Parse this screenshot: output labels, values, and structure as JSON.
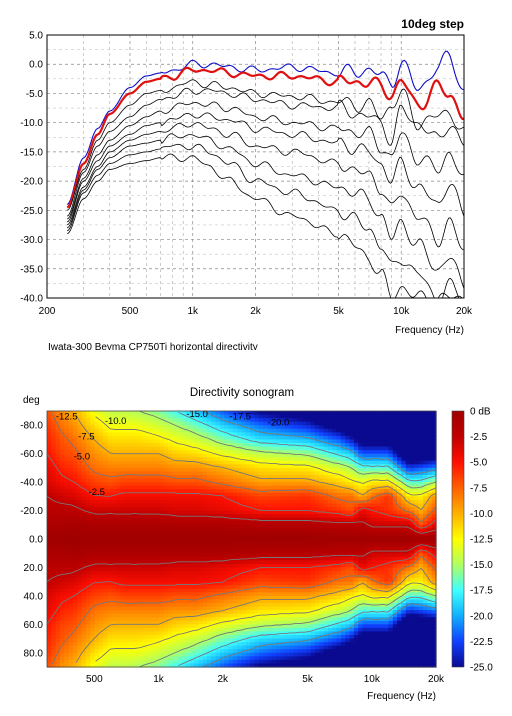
{
  "chart_data": [
    {
      "type": "line",
      "title": "10deg step",
      "xlabel": "Frequency (Hz)",
      "ylabel": "",
      "x_scale": "log",
      "xlim": [
        200,
        20000
      ],
      "ylim": [
        -40,
        5
      ],
      "x_ticks": [
        {
          "value": 200,
          "label": "200"
        },
        {
          "value": 500,
          "label": "500"
        },
        {
          "value": 1000,
          "label": "1k"
        },
        {
          "value": 2000,
          "label": "2k"
        },
        {
          "value": 5000,
          "label": "5k"
        },
        {
          "value": 10000,
          "label": "10k"
        },
        {
          "value": 20000,
          "label": "20k"
        }
      ],
      "y_ticks": [
        {
          "value": 5,
          "label": "5.0"
        },
        {
          "value": 0,
          "label": "0.0"
        },
        {
          "value": -5,
          "label": "-5.0"
        },
        {
          "value": -10,
          "label": "-10.0"
        },
        {
          "value": -15,
          "label": "-15.0"
        },
        {
          "value": -20,
          "label": "-20.0"
        },
        {
          "value": -25,
          "label": "-25.0"
        },
        {
          "value": -30,
          "label": "-30.0"
        },
        {
          "value": -35,
          "label": "-35.0"
        },
        {
          "value": -40,
          "label": "-40.0"
        }
      ],
      "grid": true,
      "caption": "Iwata-300 Beyma CP750Ti horizontal directivity",
      "series_colors": {
        "on_axis": "#1010c8",
        "highlight": "#e01010",
        "others": "#000000"
      },
      "x": [
        250,
        300,
        350,
        400,
        500,
        600,
        700,
        800,
        1000,
        1200,
        1500,
        2000,
        3000,
        5000,
        7000,
        8000,
        9000,
        10000,
        12000,
        15000,
        17000,
        20000
      ],
      "series": [
        {
          "angle": 0,
          "values": [
            -24,
            -16,
            -11,
            -8,
            -4,
            -2,
            -1.5,
            -1,
            0,
            0,
            -0.5,
            -1,
            -0.5,
            -1.5,
            -1,
            -2,
            -3,
            0,
            -4,
            -1,
            2,
            -5
          ]
        },
        {
          "angle": 10,
          "values": [
            -24.5,
            -17,
            -12,
            -8.5,
            -5,
            -3,
            -2.5,
            -2,
            -1,
            -1,
            -1.5,
            -2,
            -2,
            -3,
            -3,
            -4,
            -5,
            -3,
            -7,
            -4,
            -5,
            -9
          ]
        },
        {
          "angle": 20,
          "values": [
            -25,
            -18,
            -13,
            -10,
            -7,
            -5,
            -4.5,
            -4,
            -3,
            -3.5,
            -4,
            -5,
            -5.5,
            -6.5,
            -7,
            -9,
            -7,
            -5,
            -10,
            -9,
            -8,
            -12
          ]
        },
        {
          "angle": 30,
          "values": [
            -26,
            -18.5,
            -14,
            -11.5,
            -9,
            -7,
            -6,
            -5.5,
            -4.5,
            -4.5,
            -5,
            -6,
            -7,
            -7.5,
            -9,
            -10,
            -13,
            -8,
            -10,
            -13,
            -10,
            -14
          ]
        },
        {
          "angle": 40,
          "values": [
            -26.5,
            -19.5,
            -15.5,
            -13,
            -10.5,
            -9,
            -8,
            -7.5,
            -6.5,
            -7,
            -7.5,
            -9,
            -10,
            -11,
            -12,
            -14,
            -16,
            -12,
            -16,
            -18,
            -15,
            -20
          ]
        },
        {
          "angle": 50,
          "values": [
            -27,
            -20,
            -16.5,
            -14,
            -12,
            -10.5,
            -10,
            -9.5,
            -8.5,
            -9,
            -9.5,
            -11,
            -12,
            -13.5,
            -15,
            -17,
            -20,
            -17,
            -21,
            -24,
            -20,
            -26
          ]
        },
        {
          "angle": 60,
          "values": [
            -27.5,
            -21,
            -17.5,
            -15,
            -13,
            -12,
            -11.5,
            -11,
            -10,
            -11,
            -12,
            -14,
            -15,
            -17,
            -19,
            -21,
            -25,
            -22,
            -26,
            -30,
            -27,
            -32
          ]
        },
        {
          "angle": 70,
          "values": [
            -28,
            -21.5,
            -18,
            -16,
            -14,
            -13.5,
            -13,
            -12.5,
            -12,
            -13,
            -14.5,
            -17,
            -19,
            -21,
            -23,
            -26,
            -30,
            -27,
            -31,
            -35,
            -33,
            -38
          ]
        },
        {
          "angle": 80,
          "values": [
            -28.5,
            -22,
            -19,
            -17,
            -15.5,
            -15,
            -14.5,
            -14,
            -14,
            -15,
            -17,
            -20,
            -22,
            -25,
            -28,
            -31,
            -35,
            -33,
            -36,
            -40,
            -38,
            -40
          ]
        },
        {
          "angle": 90,
          "values": [
            -29,
            -23,
            -20,
            -18,
            -17,
            -16.5,
            -16,
            -16,
            -16,
            -17.5,
            -20,
            -23,
            -26,
            -29,
            -33,
            -36,
            -40,
            -38,
            -40,
            -40,
            -40,
            -40
          ]
        }
      ]
    },
    {
      "type": "heatmap",
      "title": "Directivity sonogram",
      "xlabel": "Frequency (Hz)",
      "ylabel": "deg",
      "x_scale": "log",
      "xlim": [
        300,
        20000
      ],
      "ylim": [
        -90,
        90
      ],
      "x_ticks": [
        {
          "value": 500,
          "label": "500"
        },
        {
          "value": 1000,
          "label": "1k"
        },
        {
          "value": 2000,
          "label": "2k"
        },
        {
          "value": 5000,
          "label": "5k"
        },
        {
          "value": 10000,
          "label": "10k"
        },
        {
          "value": 20000,
          "label": "20k"
        }
      ],
      "y_ticks": [
        {
          "value": -80,
          "label": "-80.0"
        },
        {
          "value": -60,
          "label": "-60.0"
        },
        {
          "value": -40,
          "label": "-40.0"
        },
        {
          "value": -20,
          "label": "-20.0"
        },
        {
          "value": 0,
          "label": "0.0"
        },
        {
          "value": 20,
          "label": "20.0"
        },
        {
          "value": 40,
          "label": "40.0"
        },
        {
          "value": 60,
          "label": "60.0"
        },
        {
          "value": 80,
          "label": "80.0"
        }
      ],
      "colorbar": {
        "range": [
          -25,
          0
        ],
        "ticks": [
          {
            "value": 0,
            "label": "0 dB"
          },
          {
            "value": -2.5,
            "label": "-2.5"
          },
          {
            "value": -5,
            "label": "-5.0"
          },
          {
            "value": -7.5,
            "label": "-7.5"
          },
          {
            "value": -10,
            "label": "-10.0"
          },
          {
            "value": -12.5,
            "label": "-12.5"
          },
          {
            "value": -15,
            "label": "-15.0"
          },
          {
            "value": -17.5,
            "label": "-17.5"
          },
          {
            "value": -20,
            "label": "-20.0"
          },
          {
            "value": -22.5,
            "label": "-22.5"
          },
          {
            "value": -25,
            "label": "-25.0"
          }
        ],
        "colors": [
          "#0a0a90",
          "#1040ff",
          "#10b0ff",
          "#40ffff",
          "#b0ff60",
          "#ffff00",
          "#ffb000",
          "#ff6000",
          "#ff1000",
          "#c00000",
          "#a00000"
        ]
      },
      "contour_labels": [
        {
          "label": "-12.5",
          "x": 330,
          "y": -86
        },
        {
          "label": "-10.0",
          "x": 560,
          "y": -83
        },
        {
          "label": "-15.0",
          "x": 1350,
          "y": -88
        },
        {
          "label": "-17.5",
          "x": 2150,
          "y": -86
        },
        {
          "label": "-20.0",
          "x": 3250,
          "y": -82
        },
        {
          "label": "-7.5",
          "x": 420,
          "y": -72
        },
        {
          "label": "-5.0",
          "x": 400,
          "y": -58
        },
        {
          "label": "-2.5",
          "x": 470,
          "y": -33
        }
      ],
      "contour_levels": [
        -2.5,
        -5,
        -7.5,
        -10,
        -12.5,
        -15,
        -17.5,
        -20
      ]
    }
  ]
}
